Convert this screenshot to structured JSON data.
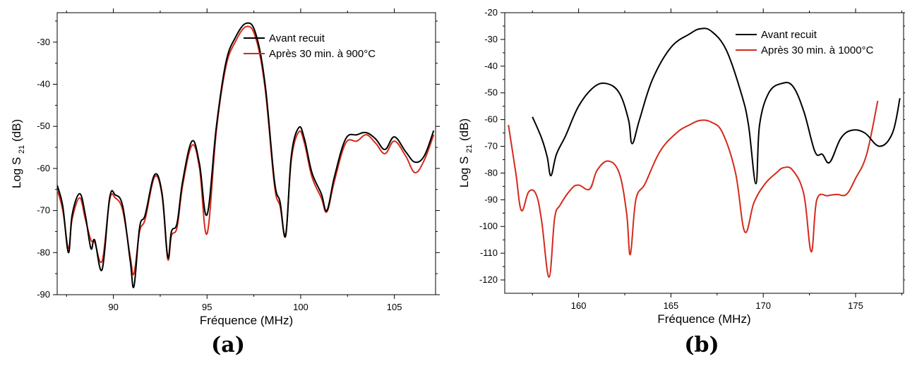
{
  "chart_data": [
    {
      "type": "line",
      "xlabel": "Fréquence (MHz)",
      "ylabel": "Log S",
      "ylabel_sub": "21",
      "ylabel_suffix": " (dB)",
      "xlim": [
        87,
        107.2
      ],
      "ylim": [
        -90,
        -23
      ],
      "xticks": [
        90,
        95,
        100,
        105
      ],
      "yticks": [
        -90,
        -80,
        -70,
        -60,
        -50,
        -40,
        -30
      ],
      "legend_position": "top-right",
      "series": [
        {
          "name": "Avant recuit",
          "color": "#000000",
          "x": [
            87.0,
            87.3,
            87.6,
            87.8,
            88.2,
            88.5,
            88.8,
            89.0,
            89.4,
            89.8,
            90.1,
            90.5,
            90.9,
            91.1,
            91.4,
            91.7,
            92.2,
            92.6,
            92.9,
            93.1,
            93.4,
            93.7,
            94.2,
            94.6,
            95.0,
            95.5,
            96.0,
            96.5,
            97.1,
            97.6,
            98.1,
            98.6,
            98.9,
            99.2,
            99.5,
            99.9,
            100.2,
            100.6,
            101.1,
            101.4,
            101.8,
            102.4,
            103.0,
            103.5,
            104.0,
            104.5,
            105.0,
            105.6,
            106.1,
            106.6,
            107.1
          ],
          "values": [
            -64,
            -69,
            -80,
            -71,
            -66,
            -71,
            -79,
            -77,
            -84,
            -67,
            -66.3,
            -69,
            -82,
            -88,
            -74,
            -71,
            -61.5,
            -66,
            -81,
            -75,
            -73,
            -63,
            -53.5,
            -59,
            -71,
            -50,
            -35,
            -29,
            -25.5,
            -28,
            -40,
            -63,
            -68,
            -76,
            -57,
            -50.3,
            -53,
            -61,
            -66,
            -70,
            -62,
            -53,
            -52,
            -51.5,
            -53,
            -55.5,
            -52.5,
            -56,
            -58.5,
            -57,
            -51
          ]
        },
        {
          "name": "Après 30 min. à 900°C",
          "color": "#d42a1a",
          "x": [
            87.0,
            87.3,
            87.6,
            87.8,
            88.2,
            88.5,
            88.8,
            89.0,
            89.4,
            89.8,
            90.1,
            90.5,
            90.9,
            91.1,
            91.4,
            91.7,
            92.2,
            92.6,
            92.9,
            93.1,
            93.4,
            93.7,
            94.2,
            94.6,
            95.0,
            95.5,
            96.0,
            96.5,
            97.1,
            97.6,
            98.1,
            98.6,
            98.9,
            99.2,
            99.5,
            99.9,
            100.2,
            100.6,
            101.1,
            101.4,
            101.8,
            102.4,
            103.0,
            103.5,
            104.0,
            104.5,
            105.0,
            105.6,
            106.1,
            106.6,
            107.1
          ],
          "values": [
            -65,
            -70,
            -79,
            -72,
            -67,
            -72,
            -77,
            -77.5,
            -82,
            -67.5,
            -67,
            -70,
            -81,
            -85,
            -75,
            -72,
            -62,
            -66.5,
            -81.5,
            -76,
            -74,
            -64,
            -54.5,
            -60,
            -75.5,
            -51,
            -36,
            -30,
            -26.3,
            -29,
            -41,
            -64,
            -69,
            -75.5,
            -58,
            -51.3,
            -54,
            -62,
            -67,
            -70.3,
            -63,
            -54,
            -53.5,
            -52,
            -54,
            -56.5,
            -53.5,
            -57,
            -61,
            -58,
            -52
          ]
        }
      ]
    },
    {
      "type": "line",
      "xlabel": "Fréquence (MHz)",
      "ylabel": "Log S",
      "ylabel_sub": "21",
      "ylabel_suffix": " (dB)",
      "xlim": [
        156,
        177.6
      ],
      "ylim": [
        -125,
        -20
      ],
      "xticks": [
        160,
        165,
        170,
        175
      ],
      "yticks": [
        -120,
        -110,
        -100,
        -90,
        -80,
        -70,
        -60,
        -50,
        -40,
        -30,
        -20
      ],
      "legend_position": "top-right",
      "series": [
        {
          "name": "Avant recuit",
          "color": "#000000",
          "x": [
            157.5,
            158.0,
            158.3,
            158.5,
            158.8,
            159.3,
            160.0,
            160.8,
            161.5,
            162.2,
            162.7,
            162.9,
            163.3,
            164.0,
            165.0,
            166.0,
            166.6,
            167.2,
            168.0,
            168.8,
            169.2,
            169.6,
            169.8,
            170.3,
            171.0,
            171.6,
            172.2,
            172.8,
            173.2,
            173.6,
            174.2,
            174.8,
            175.5,
            176.3,
            177.0,
            177.4
          ],
          "values": [
            -59,
            -67,
            -74,
            -81,
            -73,
            -66,
            -55,
            -48,
            -46.5,
            -50,
            -60,
            -69,
            -60,
            -45,
            -33,
            -28,
            -26,
            -27,
            -34,
            -50,
            -62,
            -84,
            -62,
            -50,
            -46.5,
            -47.5,
            -57,
            -72,
            -73,
            -76,
            -67,
            -64,
            -65,
            -70,
            -65,
            -52
          ]
        },
        {
          "name": "Après 30 min. à 1000°C",
          "color": "#d42a1a",
          "x": [
            156.2,
            156.6,
            156.9,
            157.3,
            157.7,
            158.0,
            158.4,
            158.7,
            159.0,
            159.6,
            160.0,
            160.6,
            161.0,
            161.6,
            162.2,
            162.6,
            162.8,
            163.1,
            163.6,
            164.4,
            165.3,
            166.0,
            166.6,
            167.2,
            167.8,
            168.5,
            169.0,
            169.5,
            170.1,
            170.7,
            171.1,
            171.6,
            172.2,
            172.6,
            172.9,
            173.5,
            174.0,
            174.5,
            175.0,
            175.6,
            176.2
          ],
          "values": [
            -62,
            -80,
            -94,
            -87,
            -88,
            -98,
            -119,
            -97,
            -92,
            -86,
            -84.5,
            -86,
            -79,
            -75.5,
            -80,
            -95,
            -110.5,
            -90,
            -84,
            -72,
            -65,
            -62,
            -60.3,
            -61,
            -65,
            -80,
            -102,
            -91,
            -84,
            -80,
            -78,
            -79,
            -88,
            -109.5,
            -90,
            -88.5,
            -88,
            -88,
            -82,
            -73,
            -53
          ]
        }
      ]
    }
  ],
  "captions": [
    "(a)",
    "(b)"
  ]
}
